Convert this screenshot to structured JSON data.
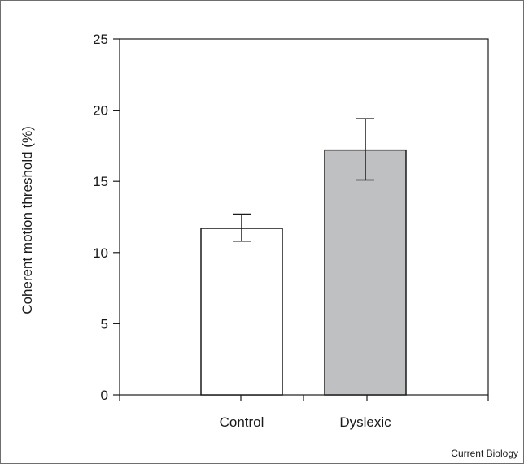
{
  "chart_data": {
    "type": "bar",
    "categories": [
      "Control",
      "Dyslexic"
    ],
    "values": [
      11.7,
      17.2
    ],
    "errors": [
      {
        "low": 10.8,
        "high": 12.7
      },
      {
        "low": 15.1,
        "high": 19.4
      }
    ],
    "bar_colors": [
      "#ffffff",
      "#bfc0c2"
    ],
    "ylabel": "Coherent motion threshold (%)",
    "xlabel": "",
    "ylim": [
      0,
      25
    ],
    "yticks": [
      0,
      5,
      10,
      15,
      20,
      25
    ],
    "grid": false,
    "legend": "none"
  },
  "credit": "Current Biology"
}
